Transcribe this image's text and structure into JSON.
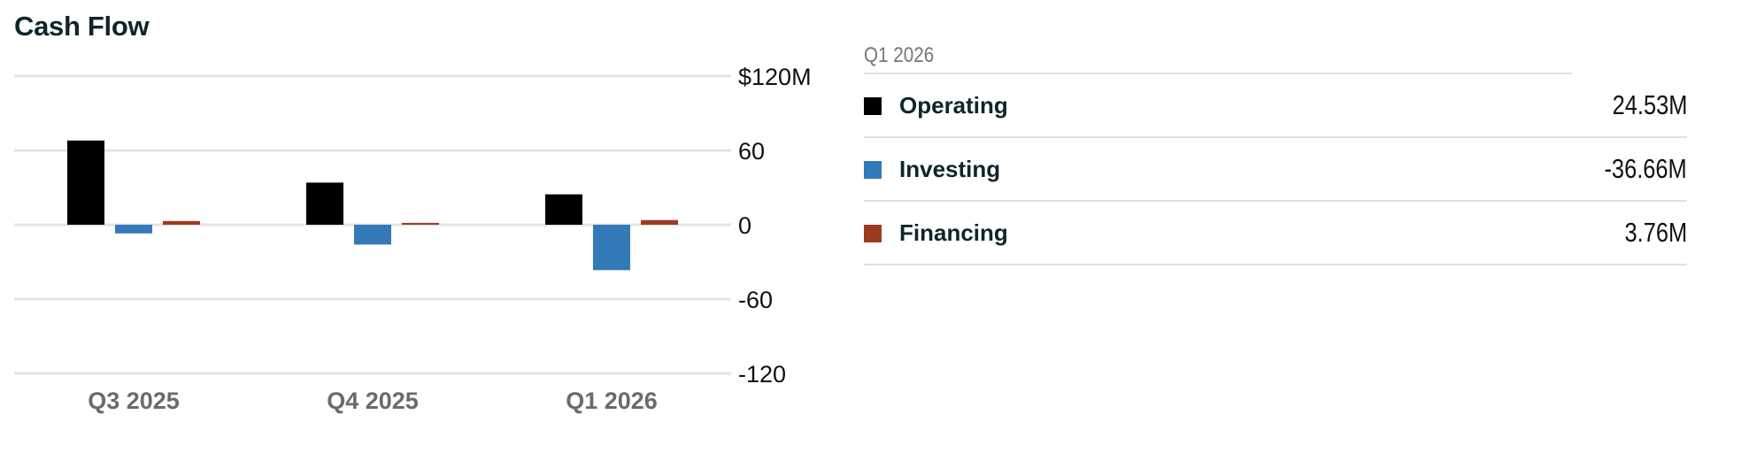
{
  "title": "Cash Flow",
  "colors": {
    "operating": "#000000",
    "investing": "#337ab7",
    "financing": "#9e3a22",
    "grid": "#e3e3e3",
    "zero_line": "#e3e3e3"
  },
  "chart_data": {
    "type": "bar",
    "title": "Cash Flow",
    "xlabel": "",
    "ylabel": "",
    "categories": [
      "Q3 2025",
      "Q4 2025",
      "Q1 2026"
    ],
    "series": [
      {
        "name": "Operating",
        "color": "#000000",
        "values": [
          68,
          34,
          24.53
        ]
      },
      {
        "name": "Investing",
        "color": "#337ab7",
        "values": [
          -7,
          -16,
          -36.66
        ]
      },
      {
        "name": "Financing",
        "color": "#9e3a22",
        "values": [
          3,
          1.5,
          3.76
        ]
      }
    ],
    "ylim": [
      -120,
      120
    ],
    "yticks": [
      120,
      60,
      0,
      -60,
      -120
    ],
    "ytick_labels": [
      "$120M",
      "60",
      "0",
      "-60",
      "-120"
    ],
    "grid": true,
    "y_axis_position": "right",
    "legend_position": "right"
  },
  "legend": {
    "period": "Q1 2026",
    "items": [
      {
        "name": "Operating",
        "value": "24.53M",
        "color": "#000000"
      },
      {
        "name": "Investing",
        "value": "-36.66M",
        "color": "#337ab7"
      },
      {
        "name": "Financing",
        "value": "3.76M",
        "color": "#9e3a22"
      }
    ]
  }
}
